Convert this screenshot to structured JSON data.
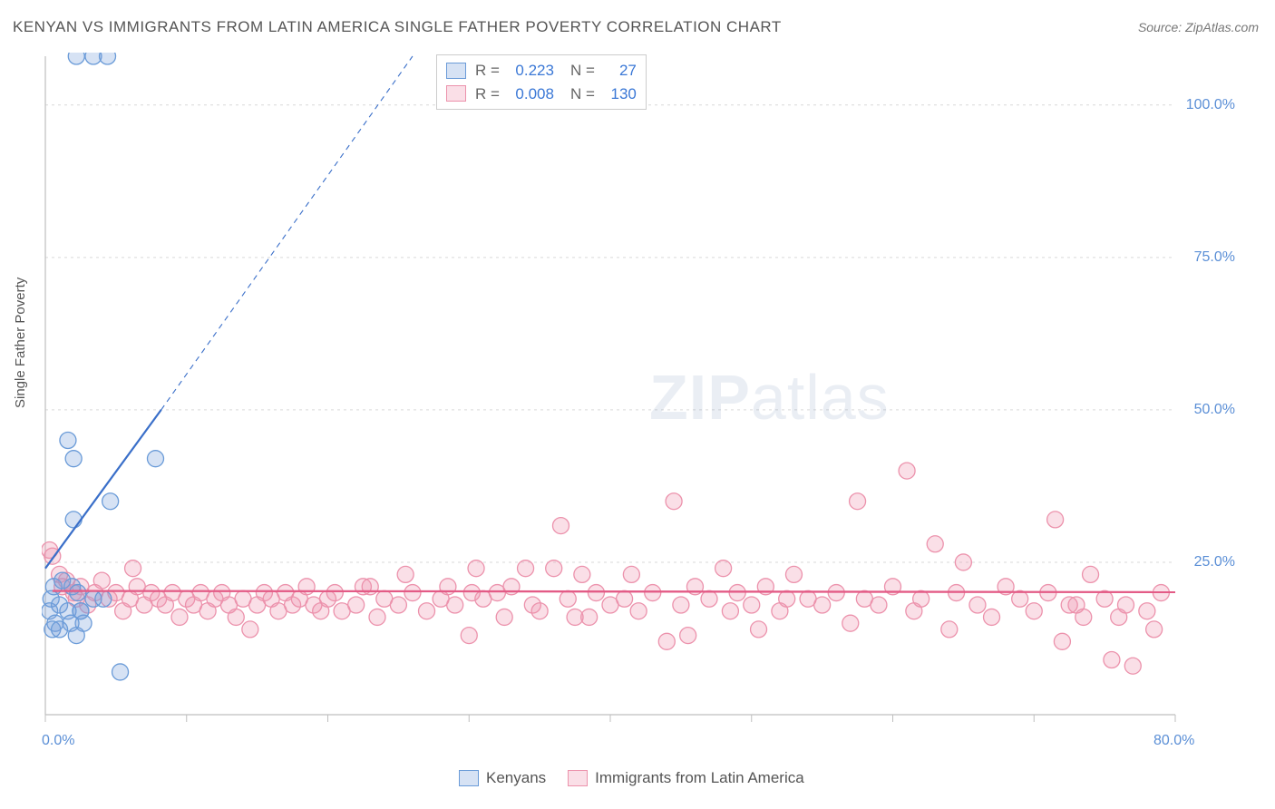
{
  "title": "KENYAN VS IMMIGRANTS FROM LATIN AMERICA SINGLE FATHER POVERTY CORRELATION CHART",
  "source": "Source: ZipAtlas.com",
  "ylabel": "Single Father Poverty",
  "watermark_a": "ZIP",
  "watermark_b": "atlas",
  "chart": {
    "type": "scatter",
    "background_color": "#ffffff",
    "grid_color": "#d9d9d9",
    "axis_color": "#bfbfbf",
    "tick_color": "#bfbfbf",
    "xlim": [
      0,
      80
    ],
    "ylim": [
      0,
      108
    ],
    "x_ticks": [
      0,
      10,
      20,
      30,
      40,
      50,
      60,
      70,
      80
    ],
    "x_tick_labels": {
      "0": "0.0%",
      "80": "80.0%"
    },
    "y_ticks": [
      25,
      50,
      75,
      100
    ],
    "y_tick_labels": {
      "25": "25.0%",
      "50": "50.0%",
      "75": "75.0%",
      "100": "100.0%"
    },
    "marker_radius": 9,
    "marker_stroke_width": 1.3,
    "series": [
      {
        "name": "Kenyans",
        "fill": "rgba(120,160,220,0.30)",
        "stroke": "#6a9bd8",
        "trend": {
          "x1": 0,
          "y1": 24,
          "x2": 8.2,
          "y2": 50,
          "stroke": "#3a6fc9",
          "width": 2.2,
          "ext_x2": 26,
          "ext_y2": 108,
          "ext_dash": "6 5",
          "ext_width": 1.1
        },
        "stats": {
          "R": "0.223",
          "N": "27"
        },
        "points": [
          [
            2.2,
            108
          ],
          [
            3.4,
            108
          ],
          [
            4.4,
            108
          ],
          [
            1.6,
            45
          ],
          [
            2.0,
            42
          ],
          [
            7.8,
            42
          ],
          [
            4.6,
            35
          ],
          [
            2.0,
            32
          ],
          [
            0.6,
            21
          ],
          [
            1.2,
            22
          ],
          [
            1.9,
            21
          ],
          [
            2.3,
            20
          ],
          [
            0.4,
            19
          ],
          [
            0.3,
            17
          ],
          [
            2.5,
            17
          ],
          [
            3.4,
            19
          ],
          [
            4.1,
            19
          ],
          [
            1.0,
            18
          ],
          [
            0.7,
            15
          ],
          [
            1.6,
            17
          ],
          [
            2.7,
            15
          ],
          [
            0.5,
            14
          ],
          [
            1.8,
            15
          ],
          [
            1.0,
            14
          ],
          [
            2.2,
            13
          ],
          [
            2.5,
            17
          ],
          [
            5.3,
            7
          ]
        ]
      },
      {
        "name": "Immigrants from Latin America",
        "fill": "rgba(240,150,175,0.30)",
        "stroke": "#ec92ac",
        "trend": {
          "x1": 0.5,
          "y1": 20.3,
          "x2": 80,
          "y2": 20.1,
          "stroke": "#e35b86",
          "width": 2.3
        },
        "stats": {
          "R": "0.008",
          "N": "130"
        },
        "points": [
          [
            0.3,
            27
          ],
          [
            0.5,
            26
          ],
          [
            1.0,
            23
          ],
          [
            1.2,
            21
          ],
          [
            1.5,
            22
          ],
          [
            2.0,
            20
          ],
          [
            2.2,
            19
          ],
          [
            2.5,
            21
          ],
          [
            3.0,
            18
          ],
          [
            3.5,
            20
          ],
          [
            4.0,
            22
          ],
          [
            4.5,
            19
          ],
          [
            5.0,
            20
          ],
          [
            5.5,
            17
          ],
          [
            6.0,
            19
          ],
          [
            6.5,
            21
          ],
          [
            7.0,
            18
          ],
          [
            7.5,
            20
          ],
          [
            8.0,
            19
          ],
          [
            8.5,
            18
          ],
          [
            9.0,
            20
          ],
          [
            9.5,
            16
          ],
          [
            10,
            19
          ],
          [
            10.5,
            18
          ],
          [
            11,
            20
          ],
          [
            11.5,
            17
          ],
          [
            12,
            19
          ],
          [
            12.5,
            20
          ],
          [
            13,
            18
          ],
          [
            13.5,
            16
          ],
          [
            14,
            19
          ],
          [
            14.5,
            14
          ],
          [
            15,
            18
          ],
          [
            15.5,
            20
          ],
          [
            16,
            19
          ],
          [
            16.5,
            17
          ],
          [
            17,
            20
          ],
          [
            17.5,
            18
          ],
          [
            18,
            19
          ],
          [
            18.5,
            21
          ],
          [
            19,
            18
          ],
          [
            19.5,
            17
          ],
          [
            20,
            19
          ],
          [
            20.5,
            20
          ],
          [
            21,
            17
          ],
          [
            22,
            18
          ],
          [
            22.5,
            21
          ],
          [
            23,
            21
          ],
          [
            23.5,
            16
          ],
          [
            24,
            19
          ],
          [
            25,
            18
          ],
          [
            25.5,
            23
          ],
          [
            26,
            20
          ],
          [
            27,
            17
          ],
          [
            28,
            19
          ],
          [
            28.5,
            21
          ],
          [
            29,
            18
          ],
          [
            30,
            13
          ],
          [
            30.5,
            24
          ],
          [
            31,
            19
          ],
          [
            32,
            20
          ],
          [
            32.5,
            16
          ],
          [
            33,
            21
          ],
          [
            34,
            24
          ],
          [
            34.5,
            18
          ],
          [
            35,
            17
          ],
          [
            36,
            24
          ],
          [
            36.5,
            31
          ],
          [
            37,
            19
          ],
          [
            38,
            23
          ],
          [
            38.5,
            16
          ],
          [
            39,
            20
          ],
          [
            40,
            18
          ],
          [
            41,
            19
          ],
          [
            41.5,
            23
          ],
          [
            42,
            17
          ],
          [
            43,
            20
          ],
          [
            44,
            12
          ],
          [
            44.5,
            35
          ],
          [
            45,
            18
          ],
          [
            46,
            21
          ],
          [
            47,
            19
          ],
          [
            48,
            24
          ],
          [
            48.5,
            17
          ],
          [
            49,
            20
          ],
          [
            50,
            18
          ],
          [
            50.5,
            14
          ],
          [
            51,
            21
          ],
          [
            52,
            17
          ],
          [
            53,
            23
          ],
          [
            54,
            19
          ],
          [
            55,
            18
          ],
          [
            56,
            20
          ],
          [
            57,
            15
          ],
          [
            57.5,
            35
          ],
          [
            58,
            19
          ],
          [
            59,
            18
          ],
          [
            60,
            21
          ],
          [
            61,
            40
          ],
          [
            61.5,
            17
          ],
          [
            62,
            19
          ],
          [
            63,
            28
          ],
          [
            64,
            14
          ],
          [
            64.5,
            20
          ],
          [
            65,
            25
          ],
          [
            66,
            18
          ],
          [
            67,
            16
          ],
          [
            68,
            21
          ],
          [
            69,
            19
          ],
          [
            70,
            17
          ],
          [
            71,
            20
          ],
          [
            71.5,
            32
          ],
          [
            72,
            12
          ],
          [
            73,
            18
          ],
          [
            74,
            23
          ],
          [
            75,
            19
          ],
          [
            75.5,
            9
          ],
          [
            76,
            16
          ],
          [
            76.5,
            18
          ],
          [
            77,
            8
          ],
          [
            78,
            17
          ],
          [
            78.5,
            14
          ],
          [
            79,
            20
          ],
          [
            72.5,
            18
          ],
          [
            73.5,
            16
          ],
          [
            52.5,
            19
          ],
          [
            45.5,
            13
          ],
          [
            30.2,
            20
          ],
          [
            37.5,
            16
          ],
          [
            6.2,
            24
          ]
        ]
      }
    ]
  },
  "legend": {
    "series_a": "Kenyans",
    "series_b": "Immigrants from Latin America",
    "r_label": "R =",
    "n_label": "N ="
  }
}
